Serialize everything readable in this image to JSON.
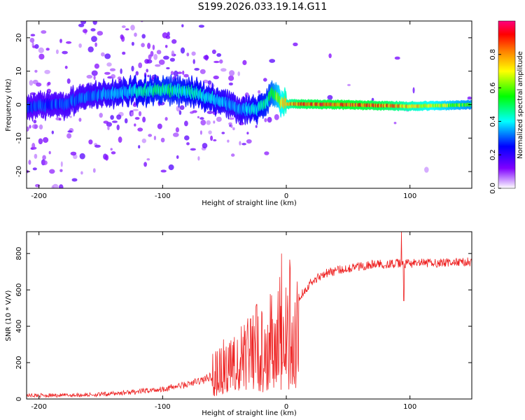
{
  "title": "S199.2026.033.19.14.G11",
  "chart_data": [
    {
      "type": "heatmap",
      "xlabel": "Height of straight line (km)",
      "ylabel": "Frequency (Hz)",
      "xlim": [
        -210,
        150
      ],
      "ylim": [
        -25,
        25
      ],
      "xticks": [
        -200,
        -100,
        0,
        100
      ],
      "xtick_labels": [
        "-200",
        "-100",
        "0",
        "100"
      ],
      "yticks": [
        -20,
        -10,
        0,
        10,
        20
      ],
      "ytick_labels": [
        "-20",
        "-10",
        "0",
        "10",
        "20"
      ],
      "colorbar": {
        "label": "Normalized spectral amplitude",
        "range": [
          0,
          1
        ],
        "ticks": [
          0.0,
          0.2,
          0.4,
          0.6,
          0.8
        ],
        "tick_labels": [
          "0.0",
          "0.2",
          "0.4",
          "0.6",
          "0.8"
        ],
        "colormap": [
          "#ffffff",
          "#7f00ff",
          "#0000ff",
          "#00ffff",
          "#00ff00",
          "#ffff00",
          "#ff7f00",
          "#ff0000",
          "#ff007f"
        ]
      },
      "ridge": [
        {
          "x": -210,
          "f": -1.0
        },
        {
          "x": -180,
          "f": 0.5
        },
        {
          "x": -150,
          "f": 3.0
        },
        {
          "x": -120,
          "f": 4.0
        },
        {
          "x": -100,
          "f": 4.5
        },
        {
          "x": -80,
          "f": 4.0
        },
        {
          "x": -60,
          "f": 2.0
        },
        {
          "x": -40,
          "f": -1.0
        },
        {
          "x": -25,
          "f": -1.5
        },
        {
          "x": -15,
          "f": 1.0
        },
        {
          "x": -12,
          "f": 4.0
        },
        {
          "x": -5,
          "f": 1.0
        },
        {
          "x": 0,
          "f": 0.2
        },
        {
          "x": 50,
          "f": 0.0
        },
        {
          "x": 100,
          "f": -0.5
        },
        {
          "x": 150,
          "f": 0.0
        }
      ],
      "ridge_amplitude": [
        {
          "x": -210,
          "a": 0.3
        },
        {
          "x": -150,
          "a": 0.35
        },
        {
          "x": -100,
          "a": 0.5
        },
        {
          "x": -70,
          "a": 0.45
        },
        {
          "x": -40,
          "a": 0.35
        },
        {
          "x": -15,
          "a": 0.5
        },
        {
          "x": 0,
          "a": 0.8
        },
        {
          "x": 10,
          "a": 0.9
        },
        {
          "x": 50,
          "a": 0.95
        },
        {
          "x": 80,
          "a": 0.9
        },
        {
          "x": 100,
          "a": 0.8
        },
        {
          "x": 150,
          "a": 0.6
        }
      ]
    },
    {
      "type": "line",
      "xlabel": "Height of straight line (km)",
      "ylabel": "SNR (10 * V/V)",
      "xlim": [
        -210,
        150
      ],
      "ylim": [
        0,
        920
      ],
      "xticks": [
        -200,
        -100,
        0,
        100
      ],
      "xtick_labels": [
        "-200",
        "-100",
        "0",
        "100"
      ],
      "yticks": [
        0,
        200,
        400,
        600,
        800
      ],
      "ytick_labels": [
        "0",
        "200",
        "400",
        "600",
        "800"
      ],
      "series": [
        {
          "color": "#ee2222",
          "trend": [
            {
              "x": -210,
              "y": 20
            },
            {
              "x": -180,
              "y": 20
            },
            {
              "x": -150,
              "y": 25
            },
            {
              "x": -120,
              "y": 40
            },
            {
              "x": -100,
              "y": 55
            },
            {
              "x": -80,
              "y": 80
            },
            {
              "x": -65,
              "y": 110
            },
            {
              "x": -50,
              "y": 180
            },
            {
              "x": -40,
              "y": 250
            },
            {
              "x": -30,
              "y": 300
            },
            {
              "x": -20,
              "y": 350
            },
            {
              "x": -10,
              "y": 420
            },
            {
              "x": 0,
              "y": 480
            },
            {
              "x": 10,
              "y": 560
            },
            {
              "x": 20,
              "y": 640
            },
            {
              "x": 30,
              "y": 690
            },
            {
              "x": 50,
              "y": 720
            },
            {
              "x": 70,
              "y": 740
            },
            {
              "x": 100,
              "y": 745
            },
            {
              "x": 130,
              "y": 750
            },
            {
              "x": 150,
              "y": 755
            }
          ],
          "spikes": [
            {
              "x": -32,
              "y": 330
            },
            {
              "x": -27,
              "y": 460
            },
            {
              "x": -24,
              "y": 520
            },
            {
              "x": -12,
              "y": 570
            },
            {
              "x": -4,
              "y": 800
            },
            {
              "x": -3,
              "y": 200
            },
            {
              "x": 3,
              "y": 720
            },
            {
              "x": 93,
              "y": 920
            },
            {
              "x": 95,
              "y": 540
            }
          ]
        }
      ]
    }
  ]
}
